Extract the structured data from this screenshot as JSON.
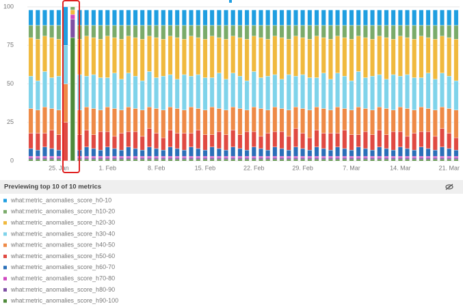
{
  "chart_data": {
    "type": "stacked_bar",
    "header": "Previewing top 10 of 10 metrics",
    "ylim": [
      0,
      100
    ],
    "yticks": [
      0,
      25,
      50,
      75,
      100
    ],
    "grid": true,
    "categories": [
      null,
      null,
      null,
      null,
      "25. Jan",
      null,
      null,
      null,
      null,
      null,
      null,
      "1. Feb",
      null,
      null,
      null,
      null,
      null,
      null,
      "8. Feb",
      null,
      null,
      null,
      null,
      null,
      null,
      "15. Feb",
      null,
      null,
      null,
      null,
      null,
      null,
      "22. Feb",
      null,
      null,
      null,
      null,
      null,
      null,
      "29. Feb",
      null,
      null,
      null,
      null,
      null,
      null,
      "7. Mar",
      null,
      null,
      null,
      null,
      null,
      null,
      "14. Mar",
      null,
      null,
      null,
      null,
      null,
      null,
      "21. Mar",
      null
    ],
    "series": [
      {
        "name": "what:metric_anomalies_score_h0-10",
        "color": "#1f9ee0",
        "values": [
          10,
          10,
          10,
          10,
          10,
          25,
          0,
          10,
          10,
          10,
          10,
          10,
          10,
          10,
          10,
          10,
          10,
          10,
          10,
          10,
          10,
          10,
          10,
          10,
          10,
          10,
          10,
          10,
          10,
          10,
          10,
          10,
          10,
          10,
          10,
          10,
          10,
          10,
          10,
          10,
          10,
          10,
          10,
          10,
          10,
          10,
          10,
          10,
          10,
          10,
          10,
          10,
          10,
          10,
          10,
          10,
          10,
          10,
          10,
          10,
          10,
          10
        ]
      },
      {
        "name": "what:metric_anomalies_score_h10-20",
        "color": "#7aab6a",
        "values": [
          8,
          9,
          7,
          8,
          9,
          0,
          2,
          9,
          7,
          8,
          9,
          7,
          8,
          9,
          7,
          8,
          9,
          7,
          8,
          9,
          7,
          8,
          9,
          7,
          8,
          9,
          7,
          8,
          9,
          7,
          8,
          9,
          7,
          8,
          9,
          7,
          8,
          9,
          7,
          8,
          9,
          7,
          8,
          9,
          7,
          8,
          9,
          7,
          8,
          9,
          7,
          8,
          9,
          7,
          8,
          9,
          7,
          8,
          9,
          7,
          8,
          9
        ]
      },
      {
        "name": "what:metric_anomalies_score_h20-30",
        "color": "#f0b93e",
        "values": [
          25,
          27,
          23,
          26,
          24,
          0,
          3,
          23,
          26,
          24,
          25,
          27,
          23,
          26,
          24,
          25,
          27,
          23,
          26,
          24,
          25,
          27,
          23,
          26,
          24,
          25,
          27,
          23,
          26,
          24,
          25,
          27,
          23,
          26,
          24,
          25,
          27,
          23,
          26,
          24,
          25,
          27,
          23,
          26,
          24,
          25,
          27,
          23,
          26,
          24,
          25,
          27,
          23,
          26,
          24,
          25,
          27,
          23,
          26,
          24,
          25,
          27
        ]
      },
      {
        "name": "what:metric_anomalies_score_h30-40",
        "color": "#7fd3ea",
        "values": [
          21,
          19,
          23,
          20,
          22,
          25,
          0,
          23,
          20,
          22,
          21,
          19,
          23,
          20,
          22,
          21,
          19,
          23,
          20,
          22,
          21,
          19,
          23,
          20,
          22,
          21,
          19,
          23,
          20,
          22,
          21,
          19,
          23,
          20,
          22,
          21,
          19,
          23,
          20,
          22,
          21,
          19,
          23,
          20,
          22,
          21,
          19,
          23,
          20,
          22,
          21,
          19,
          23,
          20,
          22,
          21,
          19,
          23,
          20,
          22,
          21,
          19
        ]
      },
      {
        "name": "what:metric_anomalies_score_h40-50",
        "color": "#ee8a47",
        "values": [
          16,
          15,
          17,
          14,
          16,
          25,
          0,
          16,
          15,
          17,
          14,
          16,
          18,
          15,
          16,
          15,
          17,
          14,
          16,
          18,
          15,
          16,
          15,
          17,
          14,
          16,
          18,
          15,
          16,
          15,
          17,
          14,
          16,
          18,
          15,
          16,
          15,
          17,
          14,
          16,
          18,
          15,
          16,
          15,
          17,
          14,
          16,
          18,
          15,
          16,
          15,
          17,
          14,
          16,
          18,
          15,
          16,
          15,
          17,
          14,
          16,
          18
        ]
      },
      {
        "name": "what:metric_anomalies_score_h50-60",
        "color": "#e04a42",
        "values": [
          10,
          11,
          9,
          12,
          10,
          25,
          0,
          10,
          11,
          9,
          12,
          10,
          8,
          11,
          10,
          11,
          9,
          12,
          10,
          8,
          11,
          10,
          11,
          9,
          12,
          10,
          8,
          11,
          10,
          11,
          9,
          12,
          10,
          8,
          11,
          10,
          11,
          9,
          12,
          10,
          8,
          11,
          10,
          11,
          9,
          12,
          10,
          8,
          11,
          10,
          11,
          9,
          12,
          10,
          8,
          11,
          10,
          11,
          9,
          12,
          10,
          8
        ]
      },
      {
        "name": "what:metric_anomalies_score_h60-70",
        "color": "#2a6fb8",
        "values": [
          5,
          4,
          6,
          5,
          4,
          0,
          0,
          4,
          6,
          5,
          4,
          6,
          5,
          4,
          6,
          5,
          4,
          6,
          5,
          4,
          6,
          5,
          4,
          6,
          5,
          4,
          6,
          5,
          4,
          6,
          5,
          4,
          6,
          5,
          4,
          6,
          5,
          4,
          6,
          5,
          4,
          6,
          5,
          4,
          6,
          5,
          4,
          6,
          5,
          4,
          6,
          5,
          4,
          6,
          5,
          4,
          6,
          5,
          4,
          6,
          5,
          4
        ]
      },
      {
        "name": "what:metric_anomalies_score_h70-80",
        "color": "#d048c0",
        "values": [
          1,
          1,
          1,
          1,
          1,
          0,
          3,
          1,
          1,
          1,
          1,
          1,
          1,
          1,
          1,
          1,
          1,
          1,
          1,
          1,
          1,
          1,
          1,
          1,
          1,
          1,
          1,
          1,
          1,
          1,
          1,
          1,
          1,
          1,
          1,
          1,
          1,
          1,
          1,
          1,
          1,
          1,
          1,
          1,
          1,
          1,
          1,
          1,
          1,
          1,
          1,
          1,
          1,
          1,
          1,
          1,
          1,
          1,
          1,
          1,
          1,
          1
        ]
      },
      {
        "name": "what:metric_anomalies_score_h80-90",
        "color": "#7e4fa4",
        "values": [
          1,
          1,
          1,
          1,
          1,
          0,
          12,
          1,
          1,
          1,
          1,
          1,
          1,
          1,
          1,
          1,
          1,
          1,
          1,
          1,
          1,
          1,
          1,
          1,
          1,
          1,
          1,
          1,
          1,
          1,
          1,
          1,
          1,
          1,
          1,
          1,
          1,
          1,
          1,
          1,
          1,
          1,
          1,
          1,
          1,
          1,
          1,
          1,
          1,
          1,
          1,
          1,
          1,
          1,
          1,
          1,
          1,
          1,
          1,
          1,
          1,
          1
        ]
      },
      {
        "name": "what:metric_anomalies_score_h90-100",
        "color": "#4e8a3a",
        "values": [
          1,
          1,
          1,
          1,
          1,
          0,
          80,
          1,
          1,
          1,
          1,
          1,
          1,
          1,
          1,
          1,
          1,
          1,
          1,
          1,
          1,
          1,
          1,
          1,
          1,
          1,
          1,
          1,
          1,
          1,
          1,
          1,
          1,
          1,
          1,
          1,
          1,
          1,
          1,
          1,
          1,
          1,
          1,
          1,
          1,
          1,
          1,
          1,
          1,
          1,
          1,
          1,
          1,
          1,
          1,
          1,
          1,
          1,
          1,
          1,
          1,
          1
        ]
      }
    ]
  }
}
